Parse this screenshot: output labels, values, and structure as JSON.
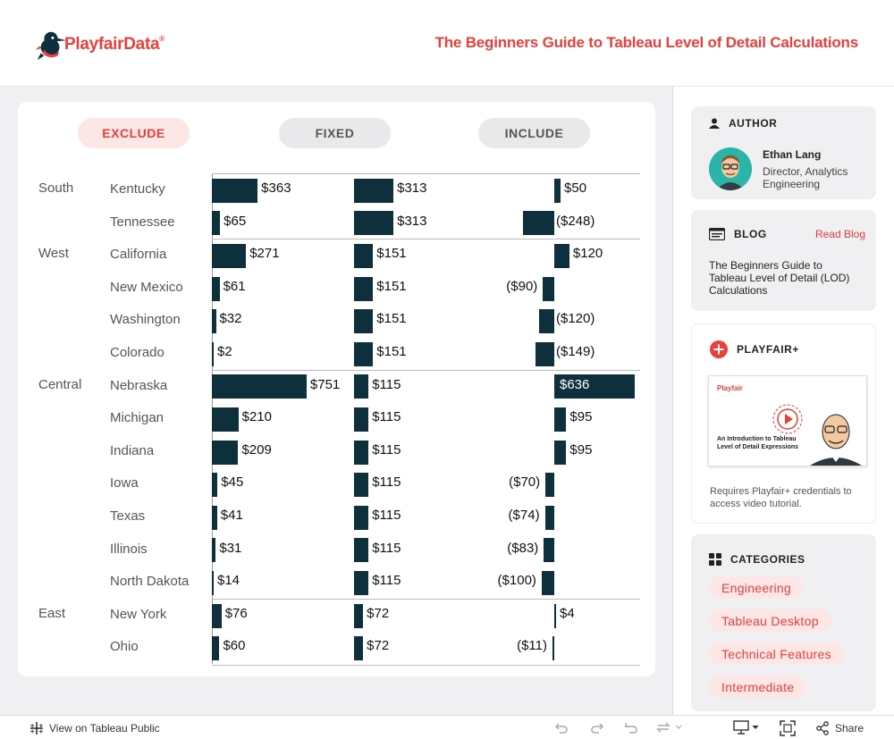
{
  "header": {
    "logo_part1": "Playfair",
    "logo_part2": "Data",
    "logo_reg": "®",
    "title": "The Beginners Guide to Tableau Level of Detail Calculations"
  },
  "toggles": {
    "exclude": "EXCLUDE",
    "fixed": "FIXED",
    "include": "INCLUDE",
    "active": "EXCLUDE"
  },
  "colors": {
    "accent": "#e9403b",
    "bar": "#0e2f3c",
    "pill_active_bg": "#fde6e6"
  },
  "chart_data": {
    "type": "bar",
    "title": "",
    "groups": [
      {
        "region": "South",
        "states": [
          "Kentucky",
          "Tennessee"
        ]
      },
      {
        "region": "West",
        "states": [
          "California",
          "New Mexico",
          "Washington",
          "Colorado"
        ]
      },
      {
        "region": "Central",
        "states": [
          "Nebraska",
          "Michigan",
          "Indiana",
          "Iowa",
          "Texas",
          "Illinois",
          "North Dakota"
        ]
      },
      {
        "region": "East",
        "states": [
          "New York",
          "Ohio"
        ]
      }
    ],
    "categories": [
      "Kentucky",
      "Tennessee",
      "California",
      "New Mexico",
      "Washington",
      "Colorado",
      "Nebraska",
      "Michigan",
      "Indiana",
      "Iowa",
      "Texas",
      "Illinois",
      "North Dakota",
      "New York",
      "Ohio"
    ],
    "series": [
      {
        "name": "EXCLUDE",
        "values": [
          363,
          65,
          271,
          61,
          32,
          2,
          751,
          210,
          209,
          45,
          41,
          31,
          14,
          76,
          60
        ],
        "labels": [
          "$363",
          "$65",
          "$271",
          "$61",
          "$32",
          "$2",
          "$751",
          "$210",
          "$209",
          "$45",
          "$41",
          "$31",
          "$14",
          "$76",
          "$60"
        ]
      },
      {
        "name": "FIXED",
        "values": [
          313,
          313,
          151,
          151,
          151,
          151,
          115,
          115,
          115,
          115,
          115,
          115,
          115,
          72,
          72
        ],
        "labels": [
          "$313",
          "$313",
          "$151",
          "$151",
          "$151",
          "$151",
          "$115",
          "$115",
          "$115",
          "$115",
          "$115",
          "$115",
          "$115",
          "$72",
          "$72"
        ]
      },
      {
        "name": "INCLUDE",
        "values": [
          50,
          -248,
          120,
          -90,
          -120,
          -149,
          636,
          95,
          95,
          -70,
          -74,
          -83,
          -100,
          4,
          -11
        ],
        "labels": [
          "$50",
          "($248)",
          "$120",
          "($90)",
          "($120)",
          "($149)",
          "$636",
          "$95",
          "$95",
          "($70)",
          "($74)",
          "($83)",
          "($100)",
          "$4",
          "($11)"
        ]
      }
    ]
  },
  "sidebar": {
    "author": {
      "heading": "AUTHOR",
      "name": "Ethan Lang",
      "role": "Director, Analytics Engineering"
    },
    "blog": {
      "heading": "BLOG",
      "link": "Read Blog",
      "text": "The Beginners Guide to Tableau Level of Detail (LOD) Calculations"
    },
    "playfair_plus": {
      "heading": "PLAYFAIR+",
      "thumb_brand": "Playfair",
      "thumb_title": "An Introduction to Tableau Level of Detail Expressions",
      "note": "Requires Playfair+ credentials to access video tutorial."
    },
    "categories": {
      "heading": "CATEGORIES",
      "tags": [
        "Engineering",
        "Tableau Desktop",
        "Technical Features",
        "Intermediate"
      ]
    }
  },
  "footer": {
    "view_link": "View on Tableau Public",
    "share": "Share"
  }
}
